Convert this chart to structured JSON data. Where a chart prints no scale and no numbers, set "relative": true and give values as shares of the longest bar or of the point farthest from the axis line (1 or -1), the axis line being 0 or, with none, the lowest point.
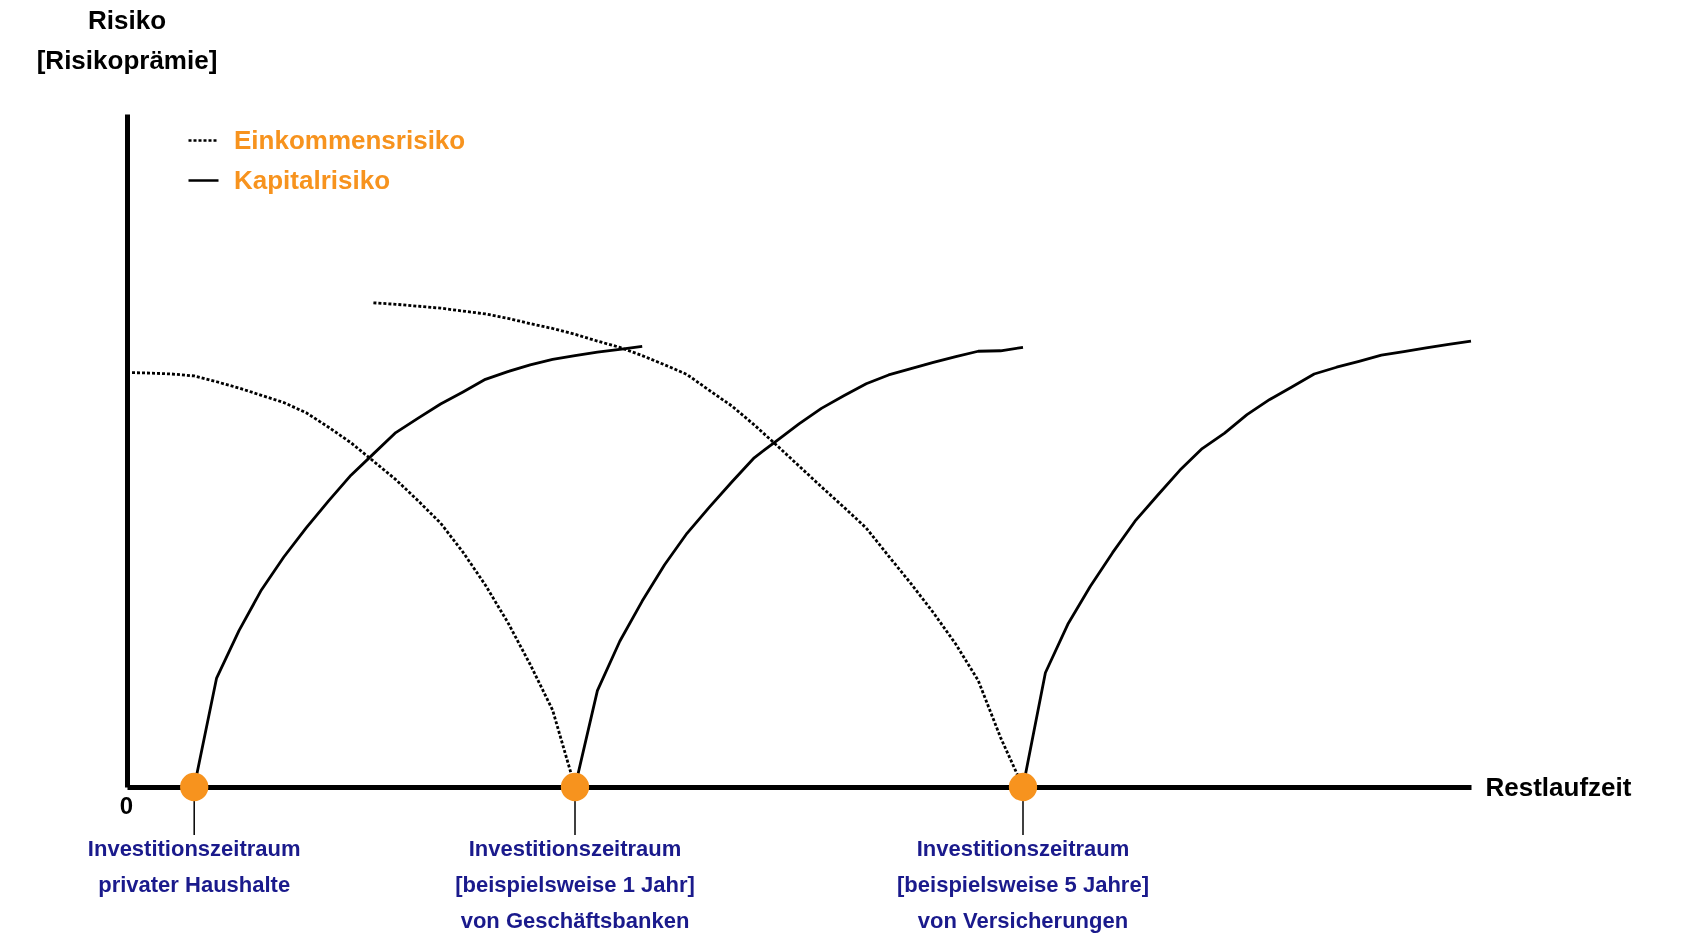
{
  "chart_data": {
    "type": "line",
    "relative": true,
    "xlabel": "Restlaufzeit",
    "legend": "top left",
    "categories": [
      null,
      null,
      null,
      null,
      null,
      null,
      null,
      null,
      null,
      null,
      null,
      null,
      null,
      null,
      null,
      null,
      null,
      null,
      null,
      null,
      null,
      null,
      null,
      null,
      null,
      null,
      null,
      null,
      null,
      null,
      null,
      null,
      null,
      null,
      null,
      null,
      null,
      null,
      null,
      null,
      null,
      null,
      null,
      null,
      null,
      null,
      null,
      null,
      null,
      null,
      null,
      null,
      null,
      null,
      null,
      null,
      null,
      null,
      null,
      null,
      null
    ],
    "series": [
      {
        "name": "Einkommensrisiko",
        "color": "#000000",
        "line_style": "dotted",
        "values": [
          0.856,
          0.855,
          0.853,
          0.849,
          0.837,
          0.824,
          0.809,
          0.794,
          0.773,
          0.743,
          0.711,
          0.673,
          0.635,
          0.591,
          0.545,
          0.485,
          0.417,
          0.34,
          0.253,
          0.159,
          0,
          null,
          null,
          null,
          null,
          null,
          null,
          null,
          null,
          null,
          null,
          null,
          null,
          null,
          null,
          null,
          null,
          null,
          null,
          null,
          null,
          null,
          null,
          null,
          null,
          null,
          null,
          null,
          null,
          null,
          null,
          null,
          null,
          null,
          null,
          null,
          null,
          null,
          null,
          null,
          null
        ]
      },
      {
        "color": "#000000",
        "line_style": "dotted",
        "values": [
          null,
          null,
          null,
          null,
          null,
          null,
          null,
          null,
          null,
          null,
          null,
          1,
          0.997,
          0.993,
          0.989,
          0.983,
          0.977,
          0.968,
          0.957,
          0.947,
          0.935,
          0.921,
          0.908,
          0.891,
          0.872,
          0.852,
          0.819,
          0.787,
          0.748,
          0.706,
          0.663,
          0.62,
          0.578,
          0.535,
          0.477,
          0.42,
          0.36,
          0.295,
          0.22,
          0.102,
          0,
          null,
          null,
          null,
          null,
          null,
          null,
          null,
          null,
          null,
          null,
          null,
          null,
          null,
          null,
          null,
          null,
          null,
          null,
          null,
          null
        ]
      },
      {
        "name": "Kapitalrisiko",
        "color": "#000000",
        "line_style": "solid",
        "values": [
          null,
          null,
          null,
          0,
          0.225,
          0.323,
          0.407,
          0.475,
          0.535,
          0.591,
          0.644,
          0.688,
          0.732,
          0.762,
          0.791,
          0.816,
          0.842,
          0.858,
          0.872,
          0.883,
          0.891,
          0.898,
          0.904,
          0.91,
          null,
          null,
          null,
          null,
          null,
          null,
          null,
          null,
          null,
          null,
          null,
          null,
          null,
          null,
          null,
          null,
          null,
          null,
          null,
          null,
          null,
          null,
          null,
          null,
          null,
          null,
          null,
          null,
          null,
          null,
          null,
          null,
          null,
          null,
          null,
          null,
          null
        ]
      },
      {
        "color": "#000000",
        "line_style": "solid",
        "values": [
          null,
          null,
          null,
          null,
          null,
          null,
          null,
          null,
          null,
          null,
          null,
          null,
          null,
          null,
          null,
          null,
          null,
          null,
          null,
          null,
          0,
          0.199,
          0.301,
          0.384,
          0.459,
          0.524,
          0.578,
          0.63,
          0.68,
          0.715,
          0.75,
          0.782,
          0.808,
          0.833,
          0.851,
          0.864,
          0.877,
          0.889,
          0.9,
          0.901,
          0.908,
          null,
          null,
          null,
          null,
          null,
          null,
          null,
          null,
          null,
          null,
          null,
          null,
          null,
          null,
          null,
          null,
          null,
          null,
          null,
          null
        ]
      },
      {
        "color": "#000000",
        "line_style": "solid",
        "values": [
          null,
          null,
          null,
          null,
          null,
          null,
          null,
          null,
          null,
          null,
          null,
          null,
          null,
          null,
          null,
          null,
          null,
          null,
          null,
          null,
          null,
          null,
          null,
          null,
          null,
          null,
          null,
          null,
          null,
          null,
          null,
          null,
          null,
          null,
          null,
          null,
          null,
          null,
          null,
          null,
          0,
          0.236,
          0.336,
          0.414,
          0.484,
          0.549,
          0.602,
          0.654,
          0.699,
          0.731,
          0.769,
          0.8,
          0.826,
          0.853,
          0.867,
          0.879,
          0.892,
          0.899,
          0.907,
          0.914,
          0.921
        ]
      }
    ],
    "annotations": [
      "Risiko\n[Risikoprämie]",
      "0",
      "Investitionszeitraum\nprivater Haushalte",
      "Investitionszeitraum\n[beispielsweise 1 Jahr]\nvon Geschäftsbanken",
      "Investitionszeitraum\n[beispielsweise 5 Jahre]\nvon Versicherungen"
    ]
  }
}
